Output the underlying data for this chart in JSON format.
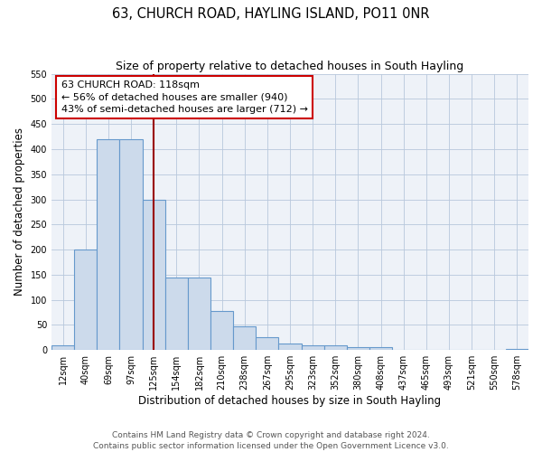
{
  "title": "63, CHURCH ROAD, HAYLING ISLAND, PO11 0NR",
  "subtitle": "Size of property relative to detached houses in South Hayling",
  "xlabel": "Distribution of detached houses by size in South Hayling",
  "ylabel": "Number of detached properties",
  "bar_labels": [
    "12sqm",
    "40sqm",
    "69sqm",
    "97sqm",
    "125sqm",
    "154sqm",
    "182sqm",
    "210sqm",
    "238sqm",
    "267sqm",
    "295sqm",
    "323sqm",
    "352sqm",
    "380sqm",
    "408sqm",
    "437sqm",
    "465sqm",
    "493sqm",
    "521sqm",
    "550sqm",
    "578sqm"
  ],
  "bar_values": [
    10,
    200,
    420,
    420,
    300,
    145,
    145,
    78,
    48,
    26,
    13,
    10,
    10,
    5,
    5,
    0,
    0,
    0,
    0,
    0,
    2
  ],
  "bar_color": "#ccdaeb",
  "bar_edge_color": "#6699cc",
  "vline_x_index": 4,
  "vline_color": "#990000",
  "annotation_line1": "63 CHURCH ROAD: 118sqm",
  "annotation_line2": "← 56% of detached houses are smaller (940)",
  "annotation_line3": "43% of semi-detached houses are larger (712) →",
  "annotation_box_facecolor": "#ffffff",
  "annotation_box_edgecolor": "#cc0000",
  "ylim_max": 550,
  "yticks": [
    0,
    50,
    100,
    150,
    200,
    250,
    300,
    350,
    400,
    450,
    500,
    550
  ],
  "plot_bg_color": "#eef2f8",
  "footer_line1": "Contains HM Land Registry data © Crown copyright and database right 2024.",
  "footer_line2": "Contains public sector information licensed under the Open Government Licence v3.0.",
  "title_fontsize": 10.5,
  "subtitle_fontsize": 9,
  "xlabel_fontsize": 8.5,
  "ylabel_fontsize": 8.5,
  "tick_fontsize": 7,
  "annotation_fontsize": 8,
  "footer_fontsize": 6.5
}
